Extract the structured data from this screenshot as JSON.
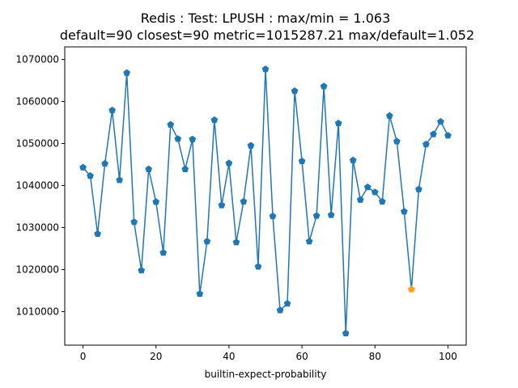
{
  "chart_data": {
    "type": "line",
    "title_line1": "Redis : Test: LPUSH : max/min = 1.063",
    "title_line2": "default=90 closest=90 metric=1015287.21 max/default=1.052",
    "xlabel": "builtin-expect-probability",
    "ylabel": "",
    "xlim": [
      -5,
      105
    ],
    "ylim": [
      1002000,
      1073000
    ],
    "xticks": [
      0,
      20,
      40,
      60,
      80,
      100
    ],
    "yticks": [
      1010000,
      1020000,
      1030000,
      1040000,
      1050000,
      1060000,
      1070000
    ],
    "grid": false,
    "line_color": "#1f77b4",
    "highlight_color": "#ff9f1c",
    "x": [
      0,
      2,
      4,
      6,
      8,
      10,
      12,
      14,
      16,
      18,
      20,
      22,
      24,
      26,
      28,
      30,
      32,
      34,
      36,
      38,
      40,
      42,
      44,
      46,
      48,
      50,
      52,
      54,
      56,
      58,
      60,
      62,
      64,
      66,
      68,
      70,
      72,
      74,
      76,
      78,
      80,
      82,
      84,
      86,
      88,
      90,
      92,
      94,
      96,
      98,
      100
    ],
    "values": [
      1044300,
      1042300,
      1028500,
      1045200,
      1057900,
      1041300,
      1066800,
      1031300,
      1019800,
      1043900,
      1036100,
      1024000,
      1054500,
      1051100,
      1043900,
      1051000,
      1014200,
      1026700,
      1055600,
      1035300,
      1045300,
      1026500,
      1036200,
      1049500,
      1020700,
      1067700,
      1032700,
      1010300,
      1011900,
      1062500,
      1045800,
      1026700,
      1032800,
      1063600,
      1033000,
      1054800,
      1004800,
      1046000,
      1036600,
      1039600,
      1038400,
      1036200,
      1056600,
      1050500,
      1033800,
      1015287.21,
      1039100,
      1049800,
      1052200,
      1055200,
      1051900
    ],
    "highlight": {
      "x": 90,
      "y": 1015287.21
    }
  }
}
